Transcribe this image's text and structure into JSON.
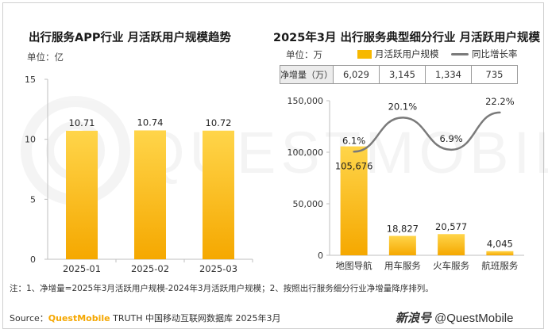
{
  "left_panel": {
    "title": "出行服务APP行业 月活跃用户规模趋势",
    "unit_label": "单位：亿"
  },
  "right_panel": {
    "title": "2025年3月 出行服务典型细分行业 月活跃用户规模",
    "unit_label": "单位：万",
    "legend_bar": "月活跃用户规模",
    "legend_line": "同比增长率",
    "net_increase_label": "净增量（万）",
    "net_increase_values": [
      "6,029",
      "3,145",
      "1,334",
      "735"
    ]
  },
  "note": "注：1、净增量=2025年3月活跃用户规模-2024年3月活跃用户规模；2、按照出行服务细分行业净增量降序排列。",
  "source": {
    "prefix": "Source：",
    "brand": "QuestMobile",
    "rest": " TRUTH 中国移动互联网数据库 2025年3月"
  },
  "watermark": {
    "logo_text": "新浪号",
    "handle": "@QuestMobile",
    "background_text": "QUESTMOBILE"
  },
  "colors": {
    "bar": "#f7b800",
    "bar_light": "#ffd54a",
    "line": "#7a7a7a",
    "axis": "#bfbfbf"
  },
  "chart_data": [
    {
      "type": "bar",
      "categories": [
        "2025-01",
        "2025-02",
        "2025-03"
      ],
      "values": [
        10.71,
        10.74,
        10.72
      ],
      "value_labels": [
        "10.71",
        "10.74",
        "10.72"
      ],
      "ylim": [
        0,
        15
      ],
      "yticks": [
        0,
        5,
        10,
        15
      ],
      "ytick_labels": [
        "0",
        "5",
        "10",
        "15"
      ],
      "grid": false
    },
    {
      "type": "bar",
      "categories": [
        "地图导航",
        "用车服务",
        "火车服务",
        "航班服务"
      ],
      "values": [
        105676,
        18827,
        20577,
        4045
      ],
      "value_labels": [
        "105,676",
        "18,827",
        "20,577",
        "4,045"
      ],
      "ylim": [
        0,
        150000
      ],
      "yticks": [
        0,
        50000,
        100000,
        150000
      ],
      "ytick_labels": [
        "0",
        "50,000",
        "100,000",
        "150,000"
      ],
      "grid": false,
      "line_series": {
        "values": [
          6.1,
          20.1,
          6.9,
          22.2
        ],
        "value_labels": [
          "6.1%",
          "20.1%",
          "6.9%",
          "22.2%"
        ]
      }
    }
  ]
}
